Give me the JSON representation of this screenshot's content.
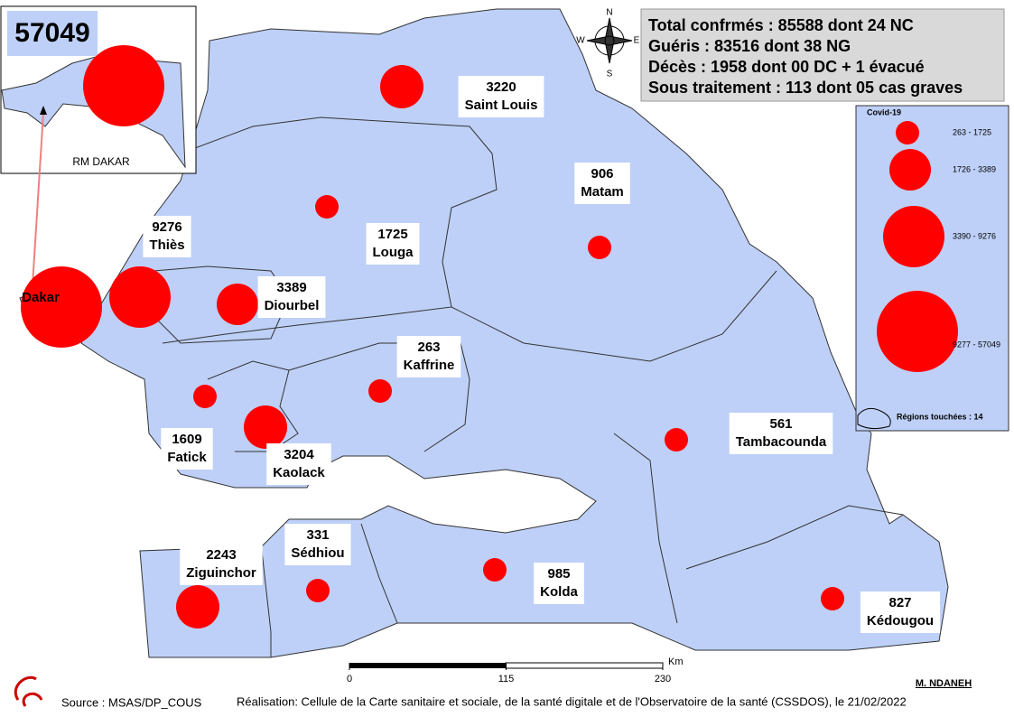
{
  "inset": {
    "label": "RM DAKAR"
  },
  "summary": [
    "Total confrmés : 85588 dont 24 NC",
    "Guéris : 83516 dont 38 NG",
    "Décès : 1958 dont 00 DC + 1 évacué",
    "Sous traitement : 113 dont 05 cas graves"
  ],
  "regions": [
    {
      "name": "Dakar",
      "cases": 57049
    },
    {
      "name": "Saint Louis",
      "cases": 3220
    },
    {
      "name": "Matam",
      "cases": 906
    },
    {
      "name": "Louga",
      "cases": 1725
    },
    {
      "name": "Thiès",
      "cases": 9276
    },
    {
      "name": "Diourbel",
      "cases": 3389
    },
    {
      "name": "Kaffrine",
      "cases": 263
    },
    {
      "name": "Fatick",
      "cases": 1609
    },
    {
      "name": "Kaolack",
      "cases": 3204
    },
    {
      "name": "Tambacounda",
      "cases": 561
    },
    {
      "name": "Sédhiou",
      "cases": 331
    },
    {
      "name": "Ziguinchor",
      "cases": 2243
    },
    {
      "name": "Kolda",
      "cases": 985
    },
    {
      "name": "Kédougou",
      "cases": 827
    }
  ],
  "legend": {
    "title": "Covid-19",
    "classes": [
      "263 - 1725",
      "1726 - 3389",
      "3390 - 9276",
      "9277 - 57049"
    ],
    "footer": "Régions touchées : 14"
  },
  "compass": [
    "N",
    "E",
    "S",
    "W"
  ],
  "scale": {
    "ticks": [
      0,
      115,
      230
    ],
    "unit": "Km"
  },
  "author": "M. NDANEH",
  "source": "Source : MSAS/DP_COUS",
  "credit": "Réalisation: Cellule de la Carte sanitaire et sociale, de la santé digitale et de l'Observatoire de la santé (CSSDOS), le 21/02/2022"
}
